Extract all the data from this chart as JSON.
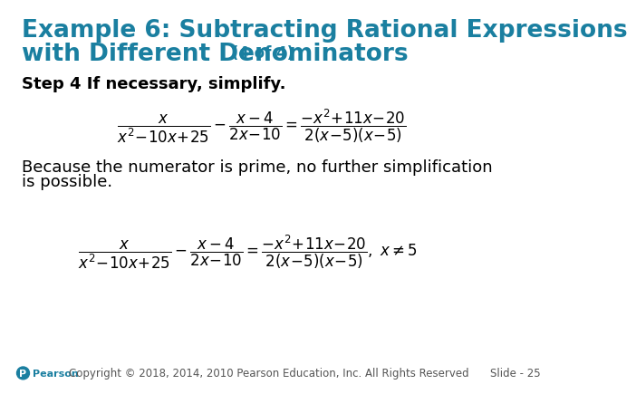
{
  "bg_color": "#ffffff",
  "title_line1": "Example 6: Subtracting Rational Expressions",
  "title_line2": "with Different Denominators",
  "title_suffix": " (4 of 4)",
  "title_color": "#1a7fa0",
  "title_fontsize": 19,
  "step_text": "Step 4 If necessary, simplify.",
  "step_fontsize": 13,
  "body_line1": "Because the numerator is prime, no further simplification",
  "body_line2": "is possible.",
  "body_fontsize": 13,
  "footer_text": "Copyright © 2018, 2014, 2010 Pearson Education, Inc. All Rights Reserved",
  "slide_text": "Slide - 25",
  "footer_fontsize": 8.5,
  "eq_fontsize": 12,
  "title_suffix_fontsize": 12
}
